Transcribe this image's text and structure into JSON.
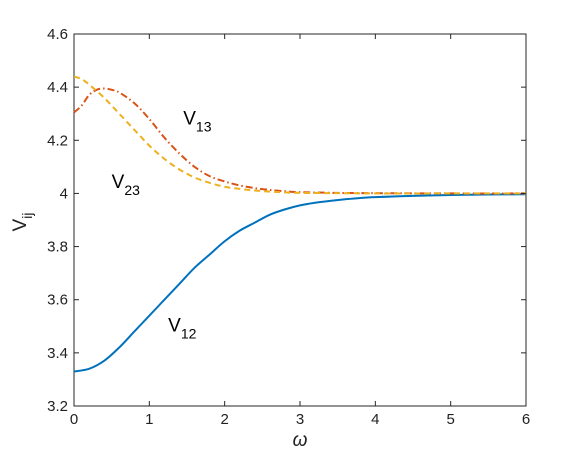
{
  "chart_data": {
    "type": "line",
    "xlabel": "ω",
    "ylabel_main": "V",
    "ylabel_sub": "ij",
    "xlim": [
      0,
      6
    ],
    "ylim": [
      3.2,
      4.6
    ],
    "x_ticks": [
      "0",
      "1",
      "2",
      "3",
      "4",
      "5",
      "6"
    ],
    "y_ticks": [
      "3.2",
      "3.4",
      "3.6",
      "3.8",
      "4",
      "4.2",
      "4.4",
      "4.6"
    ],
    "grid": false,
    "series": [
      {
        "name_main": "V",
        "name_sub": "12",
        "color": "#0072BD",
        "style": "solid",
        "label_at": [
          1.25,
          3.48
        ],
        "x": [
          0,
          0.2,
          0.4,
          0.6,
          0.8,
          1.0,
          1.2,
          1.4,
          1.6,
          1.8,
          2.0,
          2.2,
          2.4,
          2.6,
          2.8,
          3.0,
          3.2,
          3.4,
          3.6,
          3.8,
          4.0,
          4.5,
          5.0,
          5.5,
          6.0
        ],
        "values": [
          3.33,
          3.34,
          3.37,
          3.42,
          3.48,
          3.54,
          3.6,
          3.66,
          3.72,
          3.77,
          3.82,
          3.86,
          3.89,
          3.92,
          3.94,
          3.955,
          3.965,
          3.972,
          3.978,
          3.983,
          3.986,
          3.991,
          3.994,
          3.996,
          3.997
        ]
      },
      {
        "name_main": "V",
        "name_sub": "13",
        "color": "#D95319",
        "style": "dashdot",
        "label_at": [
          1.45,
          4.26
        ],
        "x": [
          0,
          0.1,
          0.2,
          0.3,
          0.4,
          0.5,
          0.6,
          0.8,
          1.0,
          1.2,
          1.4,
          1.6,
          1.8,
          2.0,
          2.2,
          2.4,
          2.6,
          2.8,
          3.0,
          3.5,
          4.0,
          5.0,
          6.0
        ],
        "values": [
          4.305,
          4.33,
          4.37,
          4.39,
          4.395,
          4.39,
          4.38,
          4.34,
          4.28,
          4.21,
          4.15,
          4.1,
          4.065,
          4.045,
          4.03,
          4.02,
          4.013,
          4.008,
          4.005,
          4.002,
          4.001,
          4.0,
          4.0
        ]
      },
      {
        "name_main": "V",
        "name_sub": "23",
        "color": "#EDB120",
        "style": "dashed",
        "label_at": [
          0.5,
          4.02
        ],
        "x": [
          0,
          0.1,
          0.2,
          0.4,
          0.6,
          0.8,
          1.0,
          1.2,
          1.4,
          1.6,
          1.8,
          2.0,
          2.2,
          2.4,
          2.6,
          2.8,
          3.0,
          3.5,
          4.0,
          5.0,
          6.0
        ],
        "values": [
          4.44,
          4.43,
          4.41,
          4.36,
          4.3,
          4.24,
          4.18,
          4.13,
          4.09,
          4.06,
          4.04,
          4.025,
          4.017,
          4.011,
          4.007,
          4.004,
          4.002,
          4.001,
          4.0,
          4.0,
          4.0
        ]
      }
    ]
  }
}
